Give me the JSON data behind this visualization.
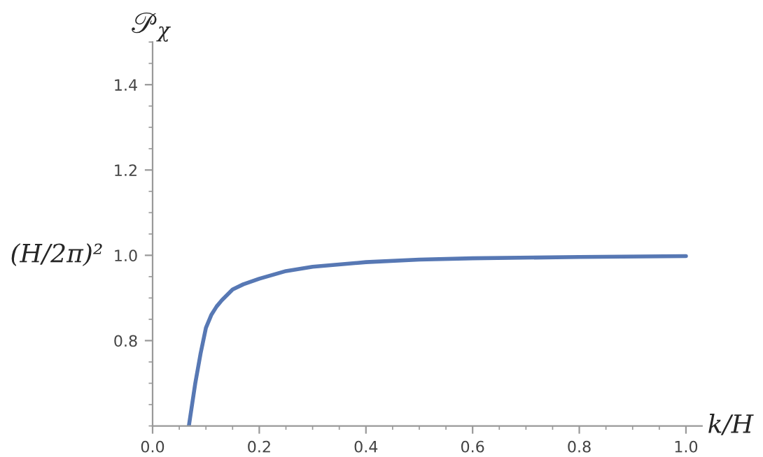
{
  "chart_data": {
    "type": "line",
    "title": "𝒫$_{χ}$",
    "ylabel": "(H/2π)²",
    "xlabel": "k/H",
    "x": [
      0.068,
      0.08,
      0.09,
      0.1,
      0.11,
      0.12,
      0.13,
      0.15,
      0.17,
      0.2,
      0.25,
      0.3,
      0.4,
      0.5,
      0.6,
      0.8,
      1.0
    ],
    "series": [
      {
        "color": "#5778b4",
        "values": [
          0.6,
          0.7,
          0.77,
          0.83,
          0.86,
          0.88,
          0.895,
          0.92,
          0.932,
          0.945,
          0.963,
          0.973,
          0.984,
          0.99,
          0.993,
          0.996,
          0.998
        ]
      }
    ],
    "xlim": [
      0,
      1.03
    ],
    "ylim": [
      0.6,
      1.5
    ],
    "xticks": [
      {
        "value": 0,
        "label": "0.0"
      },
      0.2,
      0.4,
      0.6,
      0.8,
      {
        "value": 1,
        "label": "1.0"
      }
    ],
    "yticks": [
      0.8,
      {
        "value": 1,
        "label": "1.0"
      },
      1.2,
      1.4
    ],
    "grid": false,
    "legend": false,
    "marker": "none",
    "line_style": "solid"
  }
}
